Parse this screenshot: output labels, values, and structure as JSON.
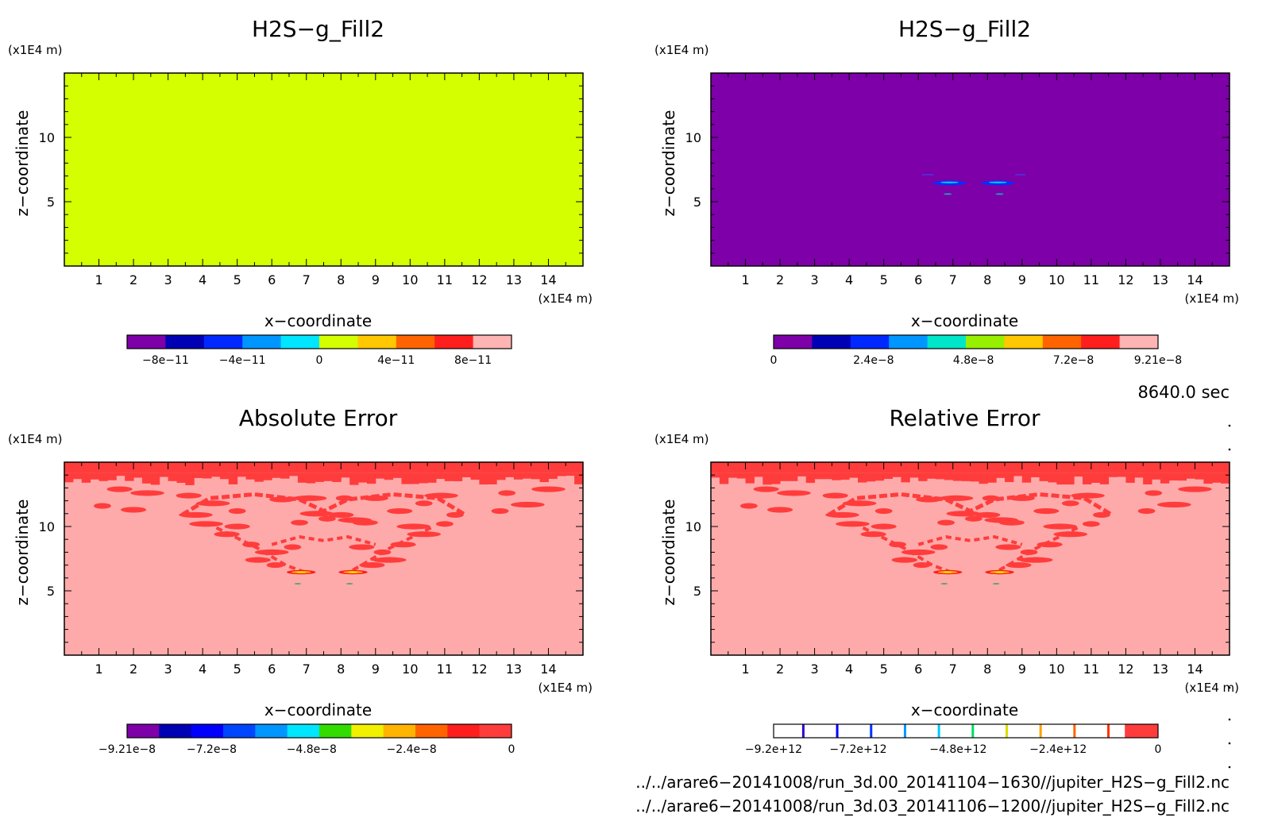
{
  "chart_data": [
    {
      "type": "heatmap",
      "title": "H2S−g_Fill2",
      "xlabel": "x−coordinate",
      "ylabel": "z−coordinate",
      "x_unit": "(x1E4 m)",
      "y_unit": "(x1E4 m)",
      "xlim": [
        0,
        15
      ],
      "ylim": [
        0,
        15
      ],
      "x_ticks": [
        1,
        2,
        3,
        4,
        5,
        6,
        7,
        8,
        9,
        10,
        11,
        12,
        13,
        14
      ],
      "y_ticks": [
        5,
        10
      ],
      "field": "uniform",
      "fill_color": "#d4ff00",
      "colorbar": {
        "type": "filled",
        "colors": [
          "#7d00a8",
          "#0000b4",
          "#0028ff",
          "#0096ff",
          "#00e6ff",
          "#d4ff00",
          "#ffc800",
          "#ff6400",
          "#ff1e1e",
          "#ffb4b4"
        ],
        "tick_labels": [
          "−8e−11",
          "−4e−11",
          "0",
          "4e−11",
          "8e−11"
        ],
        "tick_fracs": [
          0.1,
          0.3,
          0.5,
          0.7,
          0.9
        ]
      }
    },
    {
      "type": "heatmap",
      "title": "H2S−g_Fill2",
      "xlabel": "x−coordinate",
      "ylabel": "z−coordinate",
      "x_unit": "(x1E4 m)",
      "y_unit": "(x1E4 m)",
      "xlim": [
        0,
        15
      ],
      "ylim": [
        0,
        15
      ],
      "x_ticks": [
        1,
        2,
        3,
        4,
        5,
        6,
        7,
        8,
        9,
        10,
        11,
        12,
        13,
        14
      ],
      "y_ticks": [
        5,
        10
      ],
      "field": "plume",
      "fill_color": "#7d00a8",
      "colorbar": {
        "type": "filled",
        "colors": [
          "#7d00a8",
          "#0000b4",
          "#0028ff",
          "#0096ff",
          "#00e6c8",
          "#96f000",
          "#ffc800",
          "#ff6400",
          "#ff1e1e",
          "#ffb4b4"
        ],
        "tick_labels": [
          "0",
          "2.4e−8",
          "4.8e−8",
          "7.2e−8",
          "9.21e−8"
        ],
        "tick_fracs": [
          0.0,
          0.26,
          0.52,
          0.78,
          1.0
        ]
      }
    },
    {
      "type": "heatmap",
      "title": "Absolute Error",
      "xlabel": "x−coordinate",
      "ylabel": "z−coordinate",
      "x_unit": "(x1E4 m)",
      "y_unit": "(x1E4 m)",
      "xlim": [
        0,
        15
      ],
      "ylim": [
        0,
        15
      ],
      "x_ticks": [
        1,
        2,
        3,
        4,
        5,
        6,
        7,
        8,
        9,
        10,
        11,
        12,
        13,
        14
      ],
      "y_ticks": [
        5,
        10
      ],
      "field": "error",
      "fill_color": "#ffaaaa",
      "colorbar": {
        "type": "filled",
        "colors": [
          "#7d00a8",
          "#0000b4",
          "#0000ff",
          "#0046ff",
          "#0096ff",
          "#00e6ff",
          "#32dc00",
          "#f0f000",
          "#ffb400",
          "#ff6400",
          "#ff1e1e",
          "#ff3c3c"
        ],
        "tick_labels": [
          "−9.21e−8",
          "−7.2e−8",
          "−4.8e−8",
          "−2.4e−8",
          "0"
        ],
        "tick_fracs": [
          0.0,
          0.22,
          0.48,
          0.74,
          1.0
        ]
      }
    },
    {
      "type": "heatmap",
      "title": "Relative Error",
      "xlabel": "x−coordinate",
      "ylabel": "z−coordinate",
      "x_unit": "(x1E4 m)",
      "y_unit": "(x1E4 m)",
      "xlim": [
        0,
        15
      ],
      "ylim": [
        0,
        15
      ],
      "x_ticks": [
        1,
        2,
        3,
        4,
        5,
        6,
        7,
        8,
        9,
        10,
        11,
        12,
        13,
        14
      ],
      "y_ticks": [
        5,
        10
      ],
      "field": "error",
      "fill_color": "#ffaaaa",
      "colorbar": {
        "type": "lines",
        "line_colors": [
          "#3200c8",
          "#0000ff",
          "#0032ff",
          "#0096ff",
          "#00c8ff",
          "#00dc64",
          "#dcdc00",
          "#ffa000",
          "#ff6400",
          "#ff3200"
        ],
        "end_color": "#ff3c3c",
        "tick_labels": [
          "−9.2e+12",
          "−7.2e+12",
          "−4.8e+12",
          "−2.4e+12",
          "0"
        ],
        "tick_fracs": [
          0.0,
          0.22,
          0.48,
          0.74,
          1.0
        ]
      }
    }
  ],
  "time_label": "8640.0 sec",
  "files": [
    "../../arare6−20141008/run_3d.00_20141104−1630//jupiter_H2S−g_Fill2.nc",
    "../../arare6−20141008/run_3d.03_20141106−1200//jupiter_H2S−g_Fill2.nc"
  ]
}
